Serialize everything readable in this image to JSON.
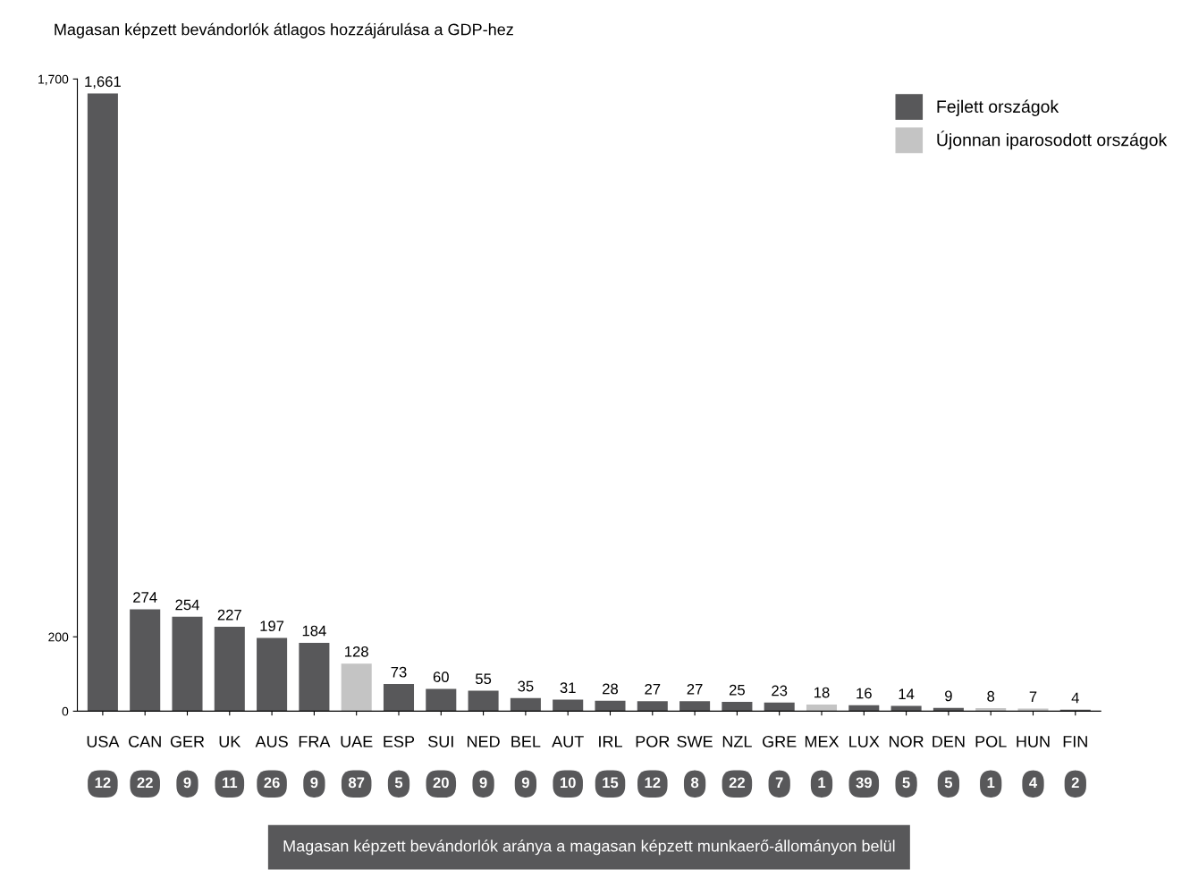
{
  "chart_data": {
    "type": "bar",
    "title": "Magasan képzett bevándorlók átlagos hozzájárulása a GDP-hez",
    "categories": [
      "USA",
      "CAN",
      "GER",
      "UK",
      "AUS",
      "FRA",
      "UAE",
      "ESP",
      "SUI",
      "NED",
      "BEL",
      "AUT",
      "IRL",
      "POR",
      "SWE",
      "NZL",
      "GRE",
      "MEX",
      "LUX",
      "NOR",
      "DEN",
      "POL",
      "HUN",
      "FIN"
    ],
    "series": [
      {
        "name": "Fejlett országok",
        "color": "#58585a",
        "values": [
          1661,
          274,
          254,
          227,
          197,
          184,
          null,
          73,
          60,
          55,
          35,
          31,
          28,
          27,
          27,
          25,
          23,
          null,
          16,
          14,
          9,
          null,
          null,
          4
        ],
        "value_labels": [
          "1,661",
          "274",
          "254",
          "227",
          "197",
          "184",
          null,
          "73",
          "60",
          "55",
          "35",
          "31",
          "28",
          "27",
          "27",
          "25",
          "23",
          null,
          "16",
          "14",
          "9",
          null,
          null,
          "4"
        ]
      },
      {
        "name": "Újonnan iparosodott országok",
        "color": "#c4c4c4",
        "values": [
          null,
          null,
          null,
          null,
          null,
          null,
          128,
          null,
          null,
          null,
          null,
          null,
          null,
          null,
          null,
          null,
          null,
          18,
          null,
          null,
          null,
          8,
          7,
          null
        ],
        "value_labels": [
          null,
          null,
          null,
          null,
          null,
          null,
          "128",
          null,
          null,
          null,
          null,
          null,
          null,
          null,
          null,
          null,
          null,
          "18",
          null,
          null,
          null,
          "8",
          "7",
          null
        ]
      }
    ],
    "ylim": [
      0,
      1700
    ],
    "yticks": [
      0,
      200,
      {
        "value": 1700,
        "label": "1,700"
      }
    ],
    "grid": false,
    "legend": "top right",
    "annotations": [
      "12",
      "22",
      "9",
      "11",
      "26",
      "9",
      "87",
      "5",
      "20",
      "9",
      "9",
      "10",
      "15",
      "12",
      "8",
      "22",
      "7",
      "1",
      "39",
      "5",
      "5",
      "1",
      "4",
      "2",
      "Magasan képzett bevándorlók aránya a magasan képzett munkaerő-állományon belül"
    ]
  }
}
